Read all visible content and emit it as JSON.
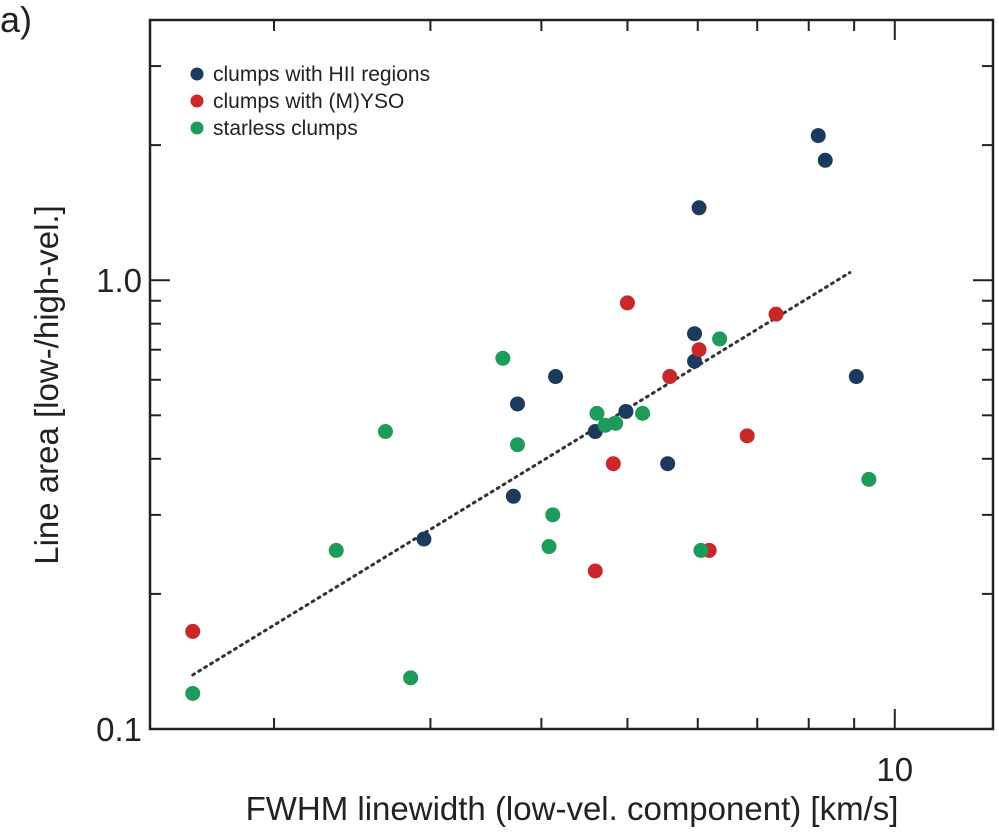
{
  "panel_label": "a)",
  "chart_data": {
    "type": "scatter",
    "xscale": "log",
    "yscale": "log",
    "xlim": [
      1.45,
      12.9
    ],
    "ylim": [
      0.1,
      3.8
    ],
    "xlabel": "FWHM linewidth (low-vel. component) [km/s]",
    "ylabel": "Line area [low-/high-vel.]",
    "x_ticks": [
      {
        "value": 10,
        "label": "10"
      }
    ],
    "y_ticks": [
      {
        "value": 0.1,
        "label": "0.1"
      },
      {
        "value": 1.0,
        "label": "1.0"
      }
    ],
    "legend_position": "top-left",
    "series": [
      {
        "name": "clumps with HII regions",
        "color": "#1b3a5c",
        "points": [
          {
            "x": 2.95,
            "y": 0.265
          },
          {
            "x": 3.72,
            "y": 0.33
          },
          {
            "x": 3.76,
            "y": 0.53
          },
          {
            "x": 4.15,
            "y": 0.61
          },
          {
            "x": 4.6,
            "y": 0.46
          },
          {
            "x": 4.98,
            "y": 0.51
          },
          {
            "x": 5.55,
            "y": 0.39
          },
          {
            "x": 5.95,
            "y": 0.66
          },
          {
            "x": 5.95,
            "y": 0.76
          },
          {
            "x": 6.02,
            "y": 1.45
          },
          {
            "x": 8.2,
            "y": 2.1
          },
          {
            "x": 8.35,
            "y": 1.85
          },
          {
            "x": 9.05,
            "y": 0.61
          }
        ]
      },
      {
        "name": "clumps with (M)YSO",
        "color": "#c8282a",
        "points": [
          {
            "x": 1.62,
            "y": 0.165
          },
          {
            "x": 4.6,
            "y": 0.225
          },
          {
            "x": 4.82,
            "y": 0.39
          },
          {
            "x": 5.0,
            "y": 0.89
          },
          {
            "x": 5.58,
            "y": 0.61
          },
          {
            "x": 6.02,
            "y": 0.7
          },
          {
            "x": 6.18,
            "y": 0.25
          },
          {
            "x": 6.82,
            "y": 0.45
          },
          {
            "x": 7.35,
            "y": 0.84
          }
        ]
      },
      {
        "name": "starless clumps",
        "color": "#1e9a5a",
        "points": [
          {
            "x": 1.62,
            "y": 0.12
          },
          {
            "x": 2.35,
            "y": 0.25
          },
          {
            "x": 2.67,
            "y": 0.46
          },
          {
            "x": 2.85,
            "y": 0.13
          },
          {
            "x": 3.62,
            "y": 0.67
          },
          {
            "x": 3.76,
            "y": 0.43
          },
          {
            "x": 4.08,
            "y": 0.255
          },
          {
            "x": 4.12,
            "y": 0.3
          },
          {
            "x": 4.62,
            "y": 0.505
          },
          {
            "x": 4.72,
            "y": 0.475
          },
          {
            "x": 4.85,
            "y": 0.48
          },
          {
            "x": 5.2,
            "y": 0.505
          },
          {
            "x": 6.05,
            "y": 0.25
          },
          {
            "x": 6.35,
            "y": 0.74
          },
          {
            "x": 9.35,
            "y": 0.36
          }
        ]
      }
    ],
    "fit_line": {
      "style": "dotted",
      "color": "#333333",
      "from": {
        "x": 1.62,
        "y": 0.132
      },
      "to": {
        "x": 8.9,
        "y": 1.04
      }
    }
  }
}
